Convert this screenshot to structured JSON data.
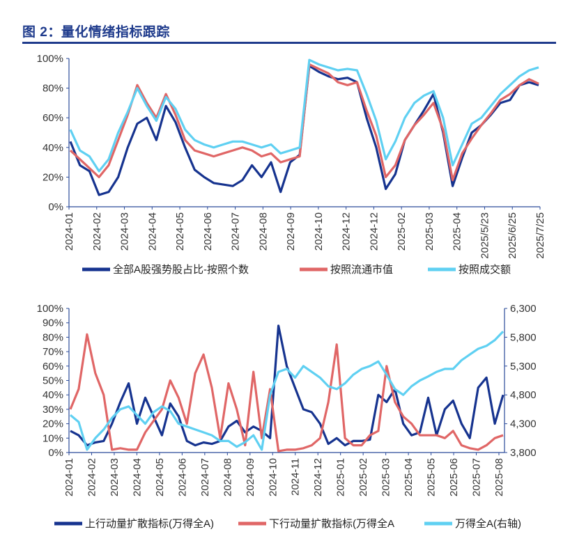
{
  "figure_title": "图 2：量化情绪指标跟踪",
  "colors": {
    "navy": "#16338f",
    "red": "#e06666",
    "cyan": "#5fd0f2",
    "title": "#1f3b8c",
    "axis": "#2a4a9a"
  },
  "chart_data": [
    {
      "type": "line",
      "title": "",
      "y_ticks": [
        "0%",
        "20%",
        "40%",
        "60%",
        "80%",
        "100%"
      ],
      "ylim": [
        0,
        100
      ],
      "x_ticks": [
        "2024-01",
        "2024-02",
        "2024-03",
        "2024-04",
        "2024-05",
        "2024-06",
        "2024-07",
        "2024-08",
        "2024-09",
        "2024-10",
        "2024-12",
        "2024-12",
        "2025-02",
        "2025-03",
        "2025-04",
        "2025/5/23",
        "2025/6/25",
        "2025/7/25"
      ],
      "series": [
        {
          "name": "全部A股强势股占比-按照个数",
          "color": "#16338f",
          "values": [
            44,
            28,
            24,
            8,
            10,
            20,
            40,
            56,
            60,
            45,
            68,
            57,
            40,
            25,
            20,
            16,
            15,
            14,
            18,
            28,
            20,
            30,
            10,
            30,
            35,
            95,
            91,
            88,
            86,
            87,
            84,
            60,
            40,
            12,
            22,
            45,
            55,
            65,
            76,
            50,
            14,
            33,
            50,
            55,
            62,
            70,
            72,
            82,
            84,
            82
          ]
        },
        {
          "name": "按照流通市值",
          "color": "#e06666",
          "values": [
            38,
            32,
            26,
            20,
            28,
            45,
            62,
            82,
            70,
            60,
            76,
            62,
            45,
            38,
            36,
            34,
            36,
            38,
            40,
            38,
            34,
            36,
            30,
            32,
            34,
            96,
            93,
            90,
            84,
            82,
            84,
            65,
            48,
            20,
            28,
            45,
            55,
            62,
            70,
            52,
            18,
            36,
            46,
            55,
            63,
            72,
            76,
            82,
            86,
            83
          ]
        },
        {
          "name": "按照成交额",
          "color": "#5fd0f2",
          "values": [
            52,
            38,
            34,
            24,
            32,
            50,
            64,
            80,
            68,
            58,
            74,
            66,
            52,
            45,
            42,
            40,
            42,
            44,
            44,
            42,
            40,
            42,
            36,
            38,
            40,
            99,
            96,
            94,
            92,
            93,
            92,
            76,
            58,
            32,
            44,
            60,
            70,
            75,
            78,
            60,
            28,
            42,
            56,
            60,
            68,
            76,
            82,
            88,
            92,
            94
          ]
        }
      ]
    },
    {
      "type": "line",
      "title": "",
      "y_ticks_left": [
        "0%",
        "10%",
        "20%",
        "30%",
        "40%",
        "50%",
        "60%",
        "70%",
        "80%",
        "90%",
        "100%"
      ],
      "ylim_left": [
        0,
        100
      ],
      "y_ticks_right": [
        "3,800",
        "4,300",
        "4,800",
        "5,300",
        "5,800",
        "6,300"
      ],
      "ylim_right": [
        3800,
        6300
      ],
      "x_ticks": [
        "2024-01",
        "2024-02",
        "2024-03",
        "2024-04",
        "2024-05",
        "2024-06",
        "2024-07",
        "2024-08",
        "2024-09",
        "2024-10",
        "2024-11",
        "2024-12",
        "2025-01",
        "2025-02",
        "2025-03",
        "2025-04",
        "2025-05",
        "2025-06",
        "2025-07",
        "2025-08"
      ],
      "series": [
        {
          "name": "上行动量扩散指标(万得全A)",
          "color": "#16338f",
          "axis": "left",
          "values": [
            15,
            12,
            5,
            7,
            8,
            20,
            35,
            48,
            20,
            38,
            25,
            12,
            34,
            25,
            8,
            5,
            7,
            6,
            8,
            18,
            22,
            14,
            18,
            15,
            10,
            88,
            60,
            45,
            30,
            28,
            20,
            6,
            10,
            5,
            8,
            8,
            9,
            40,
            35,
            44,
            20,
            12,
            14,
            38,
            12,
            30,
            36,
            20,
            10,
            45,
            52,
            20,
            40
          ]
        },
        {
          "name": "下行动量扩散指标(万得全A",
          "color": "#e06666",
          "axis": "left",
          "values": [
            30,
            44,
            82,
            55,
            40,
            2,
            3,
            2,
            2,
            14,
            22,
            30,
            50,
            38,
            20,
            55,
            68,
            45,
            10,
            48,
            30,
            5,
            56,
            10,
            44,
            1,
            2,
            2,
            3,
            5,
            10,
            35,
            75,
            10,
            5,
            5,
            12,
            15,
            60,
            35,
            25,
            20,
            12,
            12,
            12,
            10,
            15,
            5,
            3,
            2,
            5,
            10,
            12
          ]
        },
        {
          "name": "万得全A(右轴)",
          "color": "#5fd0f2",
          "axis": "right",
          "values": [
            4450,
            4330,
            3850,
            4050,
            4200,
            4400,
            4550,
            4600,
            4450,
            4300,
            4500,
            4600,
            4520,
            4300,
            4250,
            4200,
            4150,
            4100,
            4000,
            4000,
            3900,
            3980,
            4100,
            3850,
            4800,
            5200,
            5250,
            5100,
            5300,
            5200,
            5100,
            4950,
            4900,
            5000,
            5150,
            5250,
            5300,
            5380,
            5150,
            4900,
            4800,
            4950,
            5050,
            5120,
            5200,
            5250,
            5250,
            5400,
            5500,
            5600,
            5650,
            5750,
            5900
          ]
        }
      ]
    }
  ]
}
